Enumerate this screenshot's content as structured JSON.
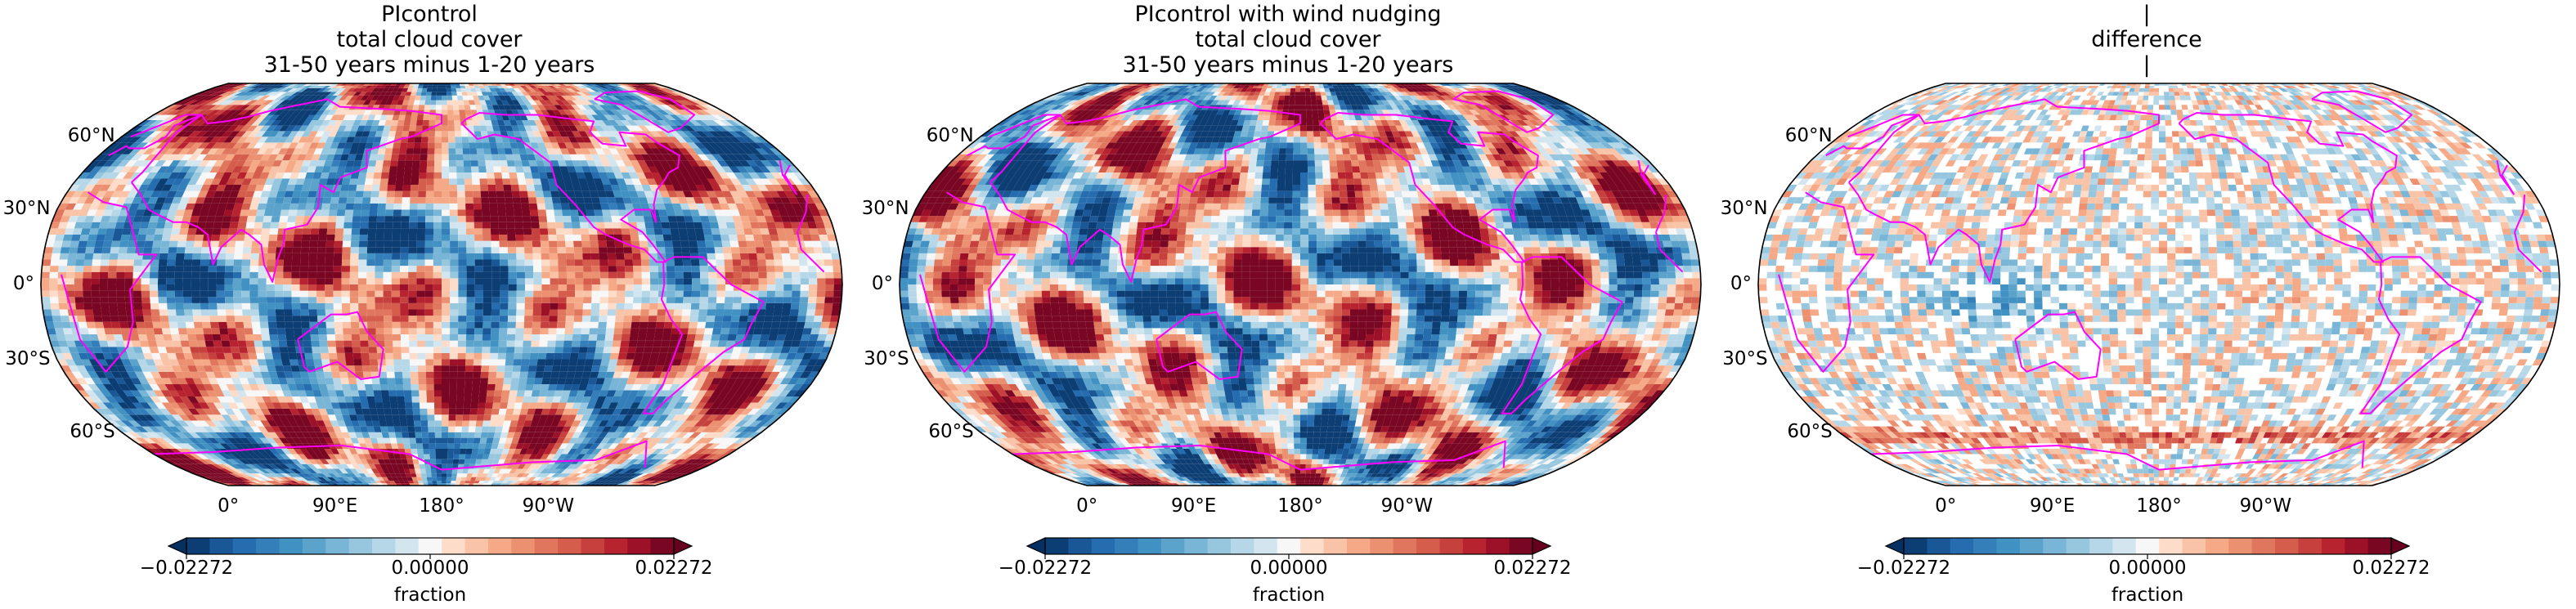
{
  "figure": {
    "panels": [
      {
        "id": "piControl",
        "title_lines": [
          "PIcontrol",
          "total cloud cover",
          "31-50 years minus 1-20 years"
        ],
        "pattern": "strong",
        "seed": 11
      },
      {
        "id": "nudged",
        "title_lines": [
          "PIcontrol with wind nudging",
          "total cloud cover",
          "31-50 years minus 1-20 years"
        ],
        "pattern": "strong",
        "seed": 23
      },
      {
        "id": "difference",
        "title_lines": [
          "|",
          "difference",
          "|"
        ],
        "pattern": "weak",
        "seed": 37
      }
    ],
    "lat_labels": [
      "60°N",
      "30°N",
      "0°",
      "30°S",
      "60°S"
    ],
    "lat_values": [
      60,
      30,
      0,
      -30,
      -60
    ],
    "lon_labels": [
      "90°E",
      "180°",
      "90°W",
      "0°"
    ],
    "projection": "Robinson",
    "central_longitude": 180,
    "coastline_color": "#ff00ff",
    "colormap": "RdBu_r",
    "colorbar": {
      "min_label": "−0.02272",
      "mid_label": "0.00000",
      "max_label": "0.02272",
      "unit": "fraction",
      "vmin": -0.02272,
      "vmax": 0.02272,
      "extend": "both",
      "levels": 21
    }
  }
}
